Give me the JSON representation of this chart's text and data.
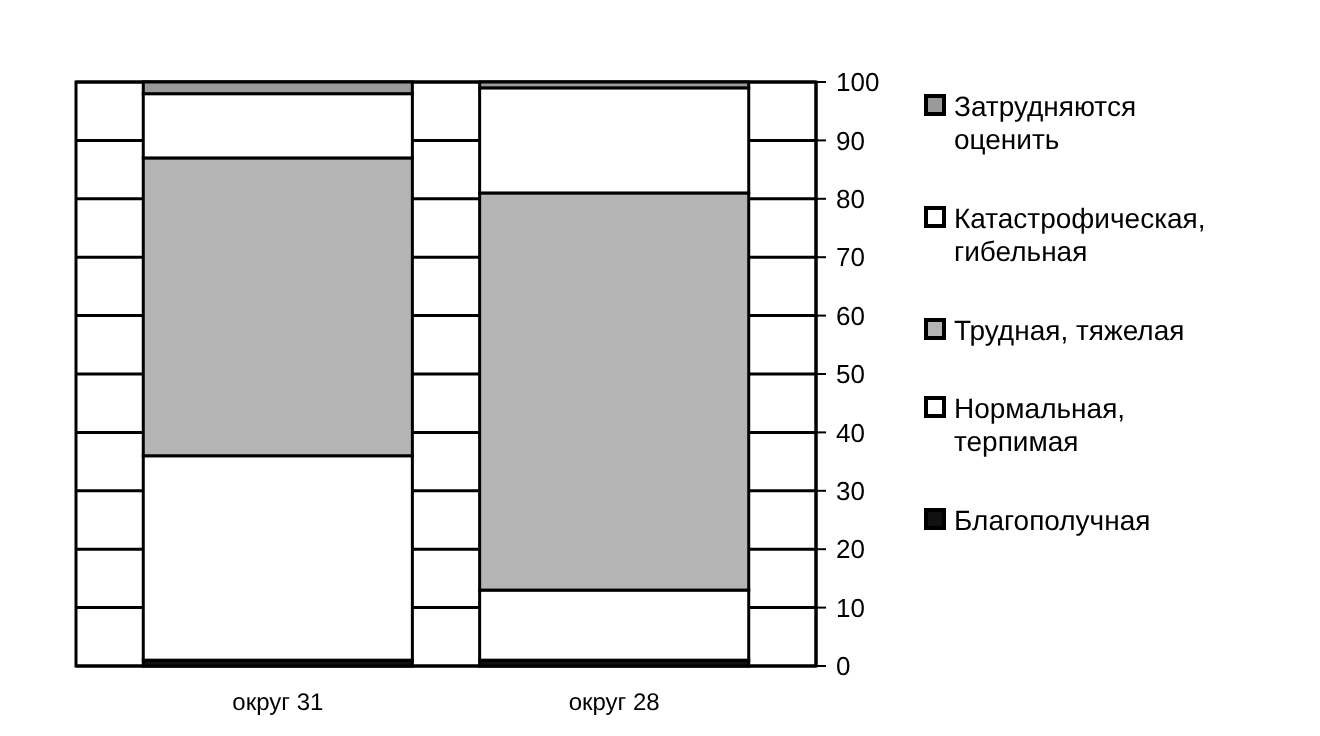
{
  "chart_data": {
    "type": "bar",
    "stacked": true,
    "categories": [
      "округ 31",
      "округ 28"
    ],
    "series": [
      {
        "name": "Благополучная",
        "color": "#111111",
        "values": [
          1,
          1
        ]
      },
      {
        "name": "Нормальная, терпимая",
        "color": "#ffffff",
        "values": [
          35,
          12
        ]
      },
      {
        "name": "Трудная, тяжелая",
        "color": "#b4b4b4",
        "values": [
          51,
          68
        ]
      },
      {
        "name": "Катастрофическая, гибельная",
        "color": "#ffffff",
        "values": [
          11,
          18
        ]
      },
      {
        "name": "Затрудняются оценить",
        "color": "#9a9a9a",
        "values": [
          2,
          1
        ]
      }
    ],
    "ylim": [
      0,
      100
    ],
    "yticks": [
      0,
      10,
      20,
      30,
      40,
      50,
      60,
      70,
      80,
      90,
      100
    ],
    "grid": "y",
    "legend": "right"
  }
}
